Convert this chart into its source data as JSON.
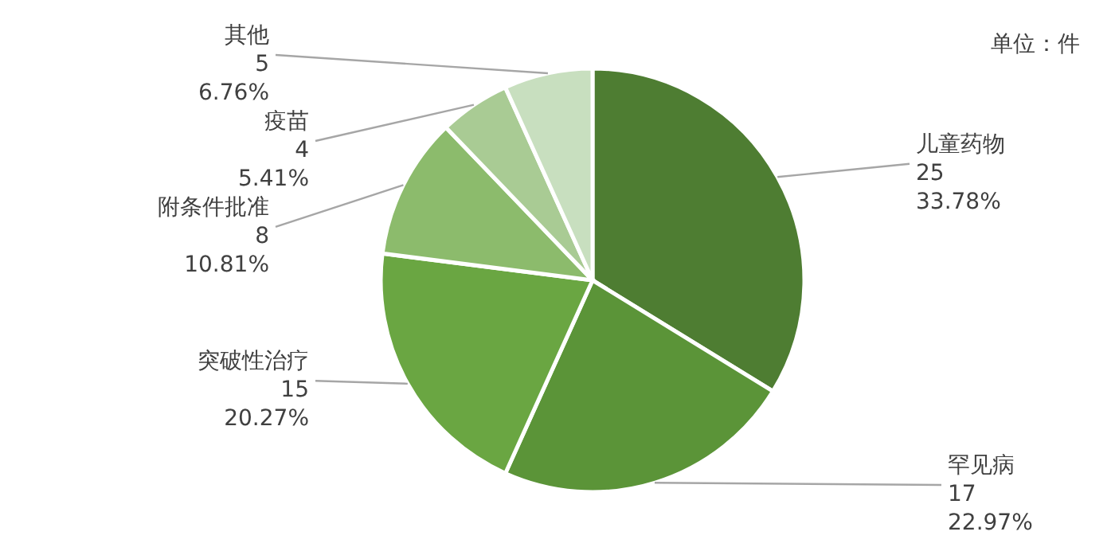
{
  "chart_data": {
    "type": "pie",
    "annotations": [
      "单位：件"
    ],
    "categories": [
      "儿童药物",
      "罕见病",
      "突破性治疗",
      "附条件批准",
      "疫苗",
      "其他"
    ],
    "values": [
      33.78,
      22.97,
      20.27,
      10.81,
      5.41,
      6.76
    ],
    "colors": [
      "#4e7d32",
      "#5b9438",
      "#6aa642",
      "#8cbb6c",
      "#a9cb94",
      "#c8dfbf"
    ],
    "value_labels": [
      "25\n33.78%",
      "17\n22.97%",
      "15\n20.27%",
      "8\n10.81%",
      "4\n5.41%",
      "5\n6.76%"
    ]
  }
}
